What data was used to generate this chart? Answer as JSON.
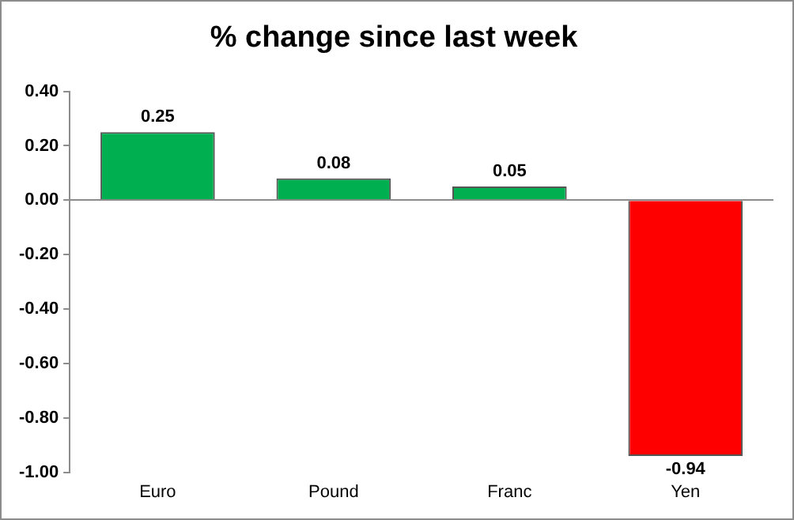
{
  "chart_data": {
    "type": "bar",
    "title": "% change since last week",
    "categories": [
      "Euro",
      "Pound",
      "Franc",
      "Yen"
    ],
    "values": [
      0.25,
      0.08,
      0.05,
      -0.94
    ],
    "colors": [
      "#00b050",
      "#00b050",
      "#00b050",
      "#ff0000"
    ],
    "ylim": [
      -1,
      0.4
    ],
    "yticks": [
      {
        "value": -1,
        "label": "-1.00"
      },
      {
        "value": -0.8,
        "label": "-0.80"
      },
      {
        "value": -0.6,
        "label": "-0.60"
      },
      {
        "value": -0.4,
        "label": "-0.40"
      },
      {
        "value": -0.2,
        "label": "-0.20"
      },
      {
        "value": 0,
        "label": "0.00"
      },
      {
        "value": 0.2,
        "label": "0.20"
      },
      {
        "value": 0.4,
        "label": "0.40"
      }
    ],
    "data_labels": true
  }
}
